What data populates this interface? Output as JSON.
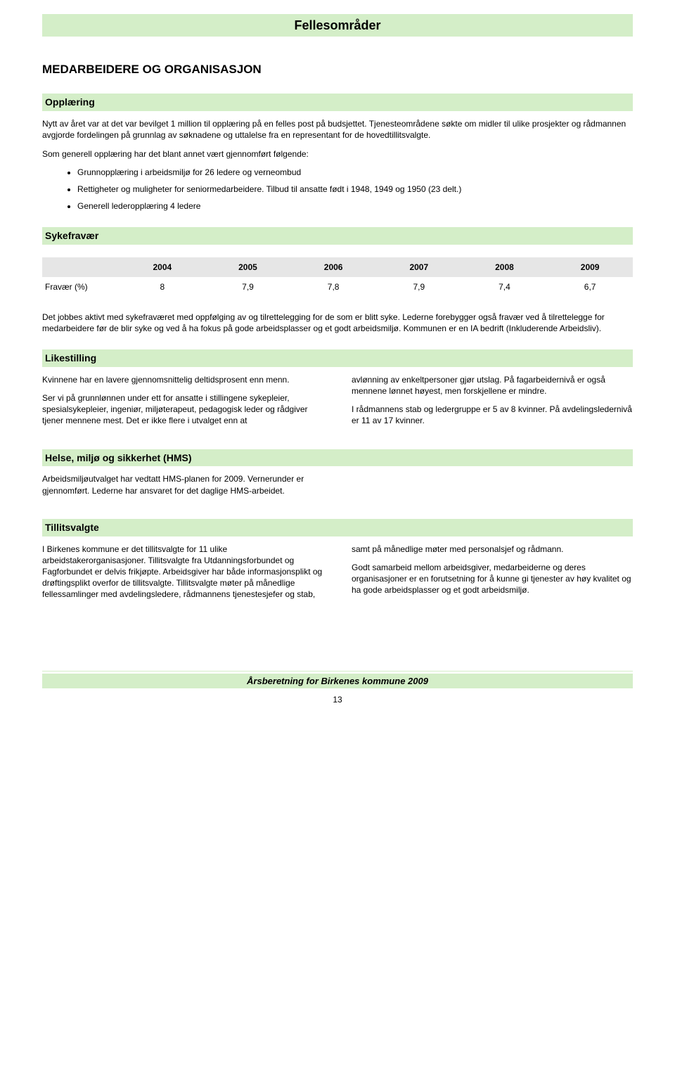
{
  "banner": {
    "title": "Fellesområder"
  },
  "h1": "MEDARBEIDERE OG ORGANISASJON",
  "opplaering": {
    "heading": "Opplæring",
    "p1": "Nytt av året var at det var bevilget 1 million til opplæring på en felles post på budsjettet. Tjenesteområdene søkte om midler til ulike prosjekter og rådmannen avgjorde fordelingen på grunnlag av søknadene og uttalelse fra en representant for de hovedtillitsvalgte.",
    "p2": "Som generell opplæring har det blant annet vært gjennomført følgende:",
    "bullets": [
      "Grunnopplæring i arbeidsmiljø for 26 ledere og verneombud",
      "Rettigheter og muligheter for seniormedarbeidere. Tilbud til ansatte født i 1948, 1949 og 1950 (23 delt.)",
      "Generell lederopplæring 4 ledere"
    ]
  },
  "sykefravaer": {
    "heading": "Sykefravær",
    "table": {
      "columns": [
        "2004",
        "2005",
        "2006",
        "2007",
        "2008",
        "2009"
      ],
      "rowlabel": "Fravær (%)",
      "values": [
        "8",
        "7,9",
        "7,8",
        "7,9",
        "7,4",
        "6,7"
      ],
      "header_bg": "#e6e6e6"
    },
    "p1": "Det jobbes aktivt med sykefraværet med oppfølging av og tilrettelegging for de som er blitt syke. Lederne forebygger også fravær ved å tilrettelegge for medarbeidere før de blir syke og ved å ha fokus på gode arbeidsplasser og et godt arbeidsmiljø. Kommunen er en IA bedrift (Inkluderende Arbeidsliv)."
  },
  "likestilling": {
    "heading": "Likestilling",
    "left_p1": "Kvinnene har en lavere gjennomsnittelig deltidsprosent enn menn.",
    "left_p2": "Ser vi på grunnlønnen under ett for ansatte i stillingene sykepleier, spesialsykepleier, ingeniør, miljøterapeut, pedagogisk leder og rådgiver tjener mennene mest. Det er ikke flere i utvalget enn at",
    "right_p1": "avlønning av enkeltpersoner gjør utslag. På fagarbeidernivå er også mennene lønnet høyest, men forskjellene er mindre.",
    "right_p2": "I rådmannens stab og ledergruppe er 5 av 8 kvinner. På avdelingsledernivå er 11 av 17 kvinner."
  },
  "hms": {
    "heading": "Helse, miljø og sikkerhet (HMS)",
    "p1": "Arbeidsmiljøutvalget har vedtatt HMS-planen for 2009. Vernerunder er gjennomført. Lederne har ansvaret for det daglige HMS-arbeidet."
  },
  "tillitsvalgte": {
    "heading": "Tillitsvalgte",
    "left_p1": "I Birkenes kommune er det tillitsvalgte for 11 ulike arbeidstakerorganisasjoner. Tillitsvalgte fra Utdanningsforbundet og Fagforbundet er delvis frikjøpte. Arbeidsgiver har både informasjonsplikt og drøftingsplikt overfor de tillitsvalgte. Tillitsvalgte møter på månedlige fellessamlinger med avdelingsledere, rådmannens tjenestesjefer og stab,",
    "right_p1": "samt på månedlige møter med personalsjef og rådmann.",
    "right_p2": "Godt samarbeid mellom arbeidsgiver, medarbeiderne og deres organisasjoner er en forutsetning for å kunne gi tjenester av høy kvalitet og ha gode arbeidsplasser og et godt arbeidsmiljø."
  },
  "footer": {
    "title": "Årsberetning for Birkenes kommune 2009",
    "page": "13"
  },
  "colors": {
    "green_bg": "#d4eec8",
    "table_header_bg": "#e6e6e6",
    "text": "#000000",
    "page_bg": "#ffffff"
  }
}
